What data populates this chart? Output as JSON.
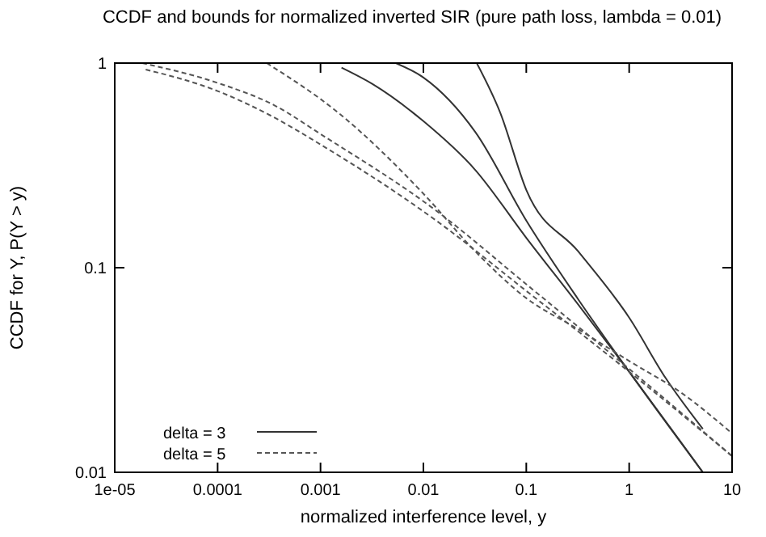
{
  "chart_data": {
    "type": "line",
    "title": "CCDF and bounds for normalized inverted SIR (pure path loss, lambda = 0.01)",
    "xlabel": "normalized interference level, y",
    "ylabel": "CCDF for Y, P(Y > y)",
    "log": "xy",
    "xlim": [
      1e-05,
      10
    ],
    "ylim": [
      0.01,
      1
    ],
    "xticks": [
      {
        "value": 1e-05,
        "label": "1e-05"
      },
      0.0001,
      0.001,
      0.01,
      0.1,
      1,
      10
    ],
    "yticks": [
      0.01,
      0.1,
      1
    ],
    "grid": false,
    "legend": "bottom left",
    "series": [
      {
        "name": "delta = 3",
        "color": "#333333",
        "line_style": "solid",
        "x": [
          0.0016,
          0.0032,
          0.01,
          0.032,
          0.1,
          0.32,
          1,
          3.2,
          5.2
        ],
        "values": [
          0.95,
          0.79,
          0.52,
          0.3,
          0.14,
          0.066,
          0.031,
          0.014,
          0.01
        ]
      },
      {
        "color": "#333333",
        "line_style": "solid",
        "x": [
          0.0054,
          0.01,
          0.032,
          0.1,
          0.32,
          1,
          5.2
        ],
        "values": [
          1,
          0.85,
          0.46,
          0.17,
          0.07,
          0.031,
          0.01
        ]
      },
      {
        "color": "#333333",
        "line_style": "solid",
        "x": [
          0.033,
          0.056,
          0.1,
          0.32,
          1,
          2.25,
          5.2
        ],
        "values": [
          1,
          0.57,
          0.24,
          0.12,
          0.057,
          0.029,
          0.0163
        ]
      },
      {
        "name": "delta = 5",
        "color": "#555555",
        "line_style": "dashed",
        "x": [
          0.0003,
          0.0015,
          0.01,
          0.032,
          0.1,
          0.32,
          1,
          3.2,
          10
        ],
        "values": [
          1,
          0.57,
          0.23,
          0.12,
          0.071,
          0.05,
          0.035,
          0.0245,
          0.0155
        ]
      },
      {
        "color": "#555555",
        "line_style": "dashed",
        "x": [
          1.85e-05,
          0.0001,
          0.00036,
          0.001,
          0.0133,
          0.1,
          1,
          10
        ],
        "values": [
          1,
          0.8,
          0.62,
          0.45,
          0.19,
          0.083,
          0.032,
          0.012
        ]
      },
      {
        "color": "#555555",
        "line_style": "dashed",
        "x": [
          2e-05,
          0.0001,
          0.00036,
          0.001,
          0.0133,
          0.1,
          1,
          10
        ],
        "values": [
          0.93,
          0.73,
          0.54,
          0.4,
          0.17,
          0.077,
          0.031,
          0.012
        ]
      }
    ]
  }
}
